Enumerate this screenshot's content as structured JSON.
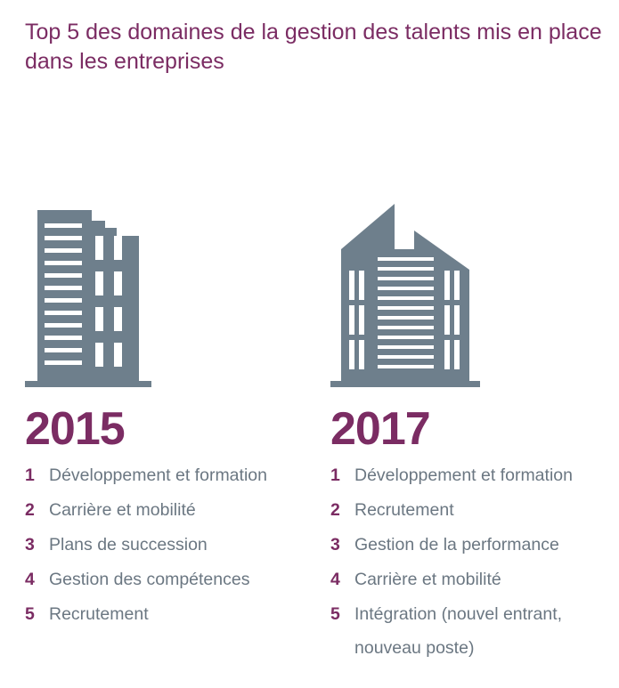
{
  "title": "Top 5 des domaines de la gestion des talents mis en place dans les entreprises",
  "colors": {
    "accent": "#7b2c63",
    "building": "#6e7f8c",
    "text": "#6b7782"
  },
  "columns": [
    {
      "year": "2015",
      "icon": "office-building-icon",
      "items": [
        {
          "rank": "1",
          "label": "Développement et formation"
        },
        {
          "rank": "2",
          "label": "Carrière et mobilité"
        },
        {
          "rank": "3",
          "label": "Plans de succession"
        },
        {
          "rank": "4",
          "label": "Gestion des compétences"
        },
        {
          "rank": "5",
          "label": "Recrutement"
        }
      ]
    },
    {
      "year": "2017",
      "icon": "modern-building-icon",
      "items": [
        {
          "rank": "1",
          "label": "Développement et formation"
        },
        {
          "rank": "2",
          "label": "Recrutement"
        },
        {
          "rank": "3",
          "label": "Gestion de la performance"
        },
        {
          "rank": "4",
          "label": "Carrière et mobilité"
        },
        {
          "rank": "5",
          "label": "Intégration (nouvel entrant, nouveau poste)"
        }
      ]
    }
  ]
}
